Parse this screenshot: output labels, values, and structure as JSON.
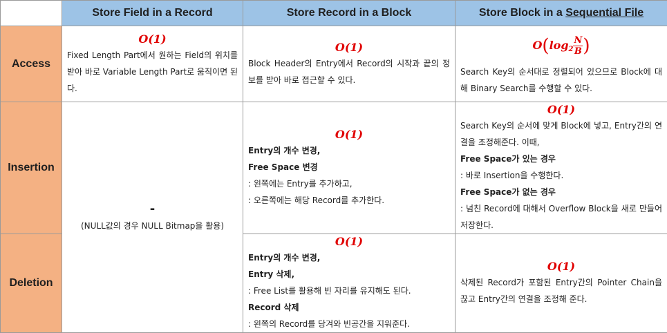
{
  "columns": {
    "field": "Store Field in a Record",
    "record": "Store Record in a Block",
    "block_prefix": "Store Block in a ",
    "block_underlined": "Sequential File"
  },
  "rows": {
    "access": "Access",
    "insertion": "Insertion",
    "deletion": "Deletion"
  },
  "complexity": {
    "const": "O(1)",
    "log_O": "O",
    "log_text": "log",
    "log_sub": "2",
    "log_num": "N",
    "log_den": "B"
  },
  "access": {
    "field_text": "Fixed Length Part에서 원하는 Field의 위치를 받아 바로 Variable Length Part로 움직이면 된다.",
    "record_text": "Block Header의 Entry에서 Record의 시작과 끝의 정보를 받아 바로 접근할 수 있다.",
    "block_text": "Search Key의 순서대로 정렬되어 있으므로 Block에 대해 Binary Search를 수행할 수 있다."
  },
  "field_insdel": {
    "dash": "-",
    "note": "(NULL값의 경우 NULL Bitmap을 활용)"
  },
  "insertion": {
    "record_b1": "Entry의 개수 변경,",
    "record_b2": "Free Space 변경",
    "record_l1": ": 왼쪽에는 Entry를 추가하고,",
    "record_l2": ": 오른쪽에는 해당 Record를 추가한다.",
    "block_intro": "Search Key의 순서에 맞게 Block에 넣고, Entry간의 연결을 조정해준다. 이때,",
    "block_b1": "Free Space가 있는 경우",
    "block_l1": ": 바로 Insertion을 수행한다.",
    "block_b2": "Free Space가 없는 경우",
    "block_l2": ": 넘친 Record에 대해서 Overflow Block을 새로 만들어 저장한다."
  },
  "deletion": {
    "record_b1": "Entry의 개수 변경,",
    "record_b2": "Entry 삭제,",
    "record_l1": ": Free List를 활용해 빈 자리를 유지해도 된다.",
    "record_b3": "Record 삭제",
    "record_l2": ": 왼쪽의 Record를 당겨와 빈공간을 지워준다.",
    "block_text": "삭제된 Record가 포함된 Entry간의 Pointer Chain을 끊고 Entry간의 연결을 조정해 준다."
  }
}
